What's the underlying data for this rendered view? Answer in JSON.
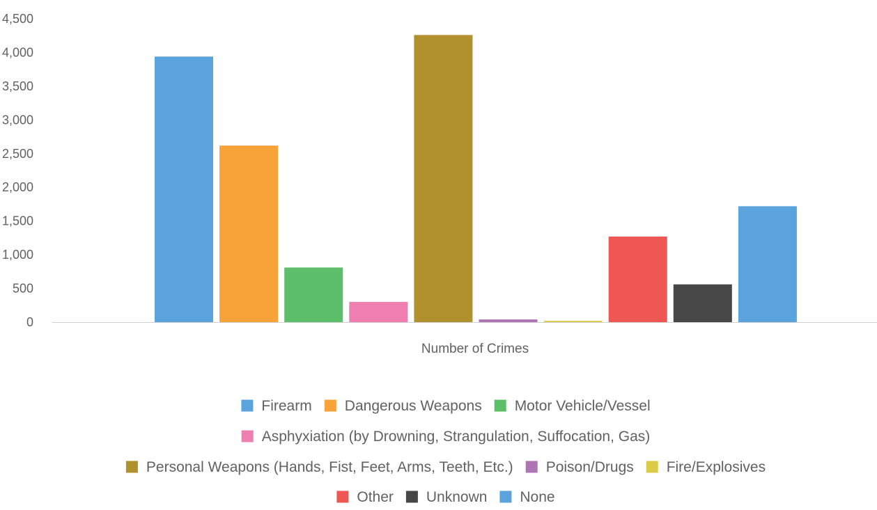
{
  "chart_data": {
    "type": "bar",
    "title": "",
    "xlabel": "Number of Crimes",
    "ylabel": "",
    "ylim": [
      0,
      4500
    ],
    "yticks": [
      0,
      500,
      1000,
      1500,
      2000,
      2500,
      3000,
      3500,
      4000,
      4500
    ],
    "ytick_labels": [
      "0",
      "500",
      "1,000",
      "1,500",
      "2,000",
      "2,500",
      "3,000",
      "3,500",
      "4,000",
      "4,500"
    ],
    "grid": false,
    "legend_position": "bottom",
    "categories": [
      "Number of Crimes"
    ],
    "series": [
      {
        "name": "Firearm",
        "color": "#5BA3DC",
        "values": [
          3940
        ]
      },
      {
        "name": "Dangerous Weapons",
        "color": "#F8A23A",
        "values": [
          2620
        ]
      },
      {
        "name": "Motor Vehicle/Vessel",
        "color": "#5DBE6A",
        "values": [
          810
        ]
      },
      {
        "name": "Asphyxiation (by Drowning, Strangulation, Suffocation, Gas)",
        "color": "#EF7FB1",
        "values": [
          300
        ]
      },
      {
        "name": "Personal Weapons (Hands, Fist, Feet, Arms, Teeth, Etc.)",
        "color": "#B0912E",
        "values": [
          4260
        ]
      },
      {
        "name": "Poison/Drugs",
        "color": "#AE74B3",
        "values": [
          40
        ]
      },
      {
        "name": "Fire/Explosives",
        "color": "#DCCB45",
        "values": [
          20
        ]
      },
      {
        "name": "Other",
        "color": "#EE5753",
        "values": [
          1270
        ]
      },
      {
        "name": "Unknown",
        "color": "#474747",
        "values": [
          560
        ]
      },
      {
        "name": "None",
        "color": "#5BA3DC",
        "values": [
          1720
        ]
      }
    ],
    "legend_rows": [
      [
        0,
        1,
        2
      ],
      [
        3
      ],
      [
        4,
        5,
        6
      ],
      [
        7,
        8,
        9
      ]
    ]
  }
}
